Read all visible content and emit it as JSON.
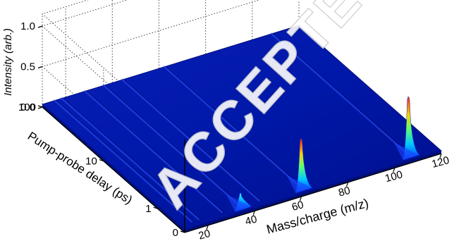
{
  "chart_data": {
    "type": "surface",
    "zlabel": "Intensity (arb.)",
    "ylabel": "Pump-probe delay (ps)",
    "xlabel": "Mass/charge (m/z)",
    "x_ticks": [
      "20",
      "40",
      "60",
      "80",
      "100",
      "120"
    ],
    "y_ticks": [
      "0",
      "1",
      "10",
      "100"
    ],
    "z_ticks": [
      "0.0",
      "0.5",
      "1.0"
    ],
    "xlim": [
      10,
      120
    ],
    "zlim": [
      0,
      1.0
    ],
    "y_scale": "log",
    "colormap": "jet",
    "peaks": [
      {
        "mz": 36,
        "intensity_at_zero_delay": 0.18
      },
      {
        "mz": 62,
        "intensity_at_zero_delay": 0.62
      },
      {
        "mz": 108,
        "intensity_at_zero_delay": 0.73
      }
    ],
    "ridges_mz": [
      15,
      18,
      28,
      36,
      44,
      62,
      108
    ],
    "watermark": "ACCEPTED"
  }
}
